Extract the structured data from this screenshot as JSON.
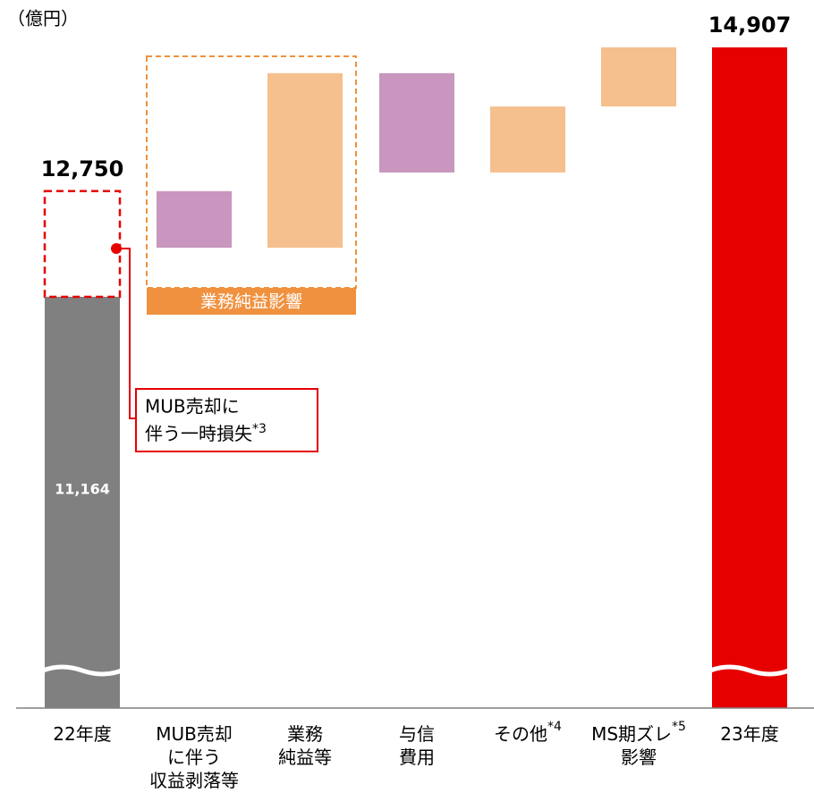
{
  "chart_data": {
    "type": "waterfall",
    "unit": "（億円）",
    "categories": [
      [
        "22年度"
      ],
      [
        "MUB売却",
        "に伴う",
        "収益剥落等"
      ],
      [
        "業務",
        "純益等"
      ],
      [
        "与信",
        "費用"
      ],
      [
        "その他"
      ],
      [
        "MS期ズレ",
        "影響"
      ],
      [
        "23年度"
      ]
    ],
    "category_notes": [
      null,
      null,
      null,
      null,
      "*4",
      "*5",
      null
    ],
    "values": [
      12750,
      -850,
      2620,
      -1490,
      990,
      887,
      14907
    ],
    "value_labels": [
      "12,750",
      null,
      null,
      null,
      null,
      null,
      "14,907"
    ],
    "inner_value": 11164,
    "inner_label": "11,164",
    "colors": {
      "start": "#808080",
      "end": "#e60000",
      "increase": "#f5bf8e",
      "decrease": "#c896be",
      "group": "#f0913f",
      "callout": "#e60000"
    },
    "group_label": "業務純益影響",
    "callout": [
      "MUB売却に",
      "伴う一時損失"
    ],
    "callout_note": "*3"
  }
}
